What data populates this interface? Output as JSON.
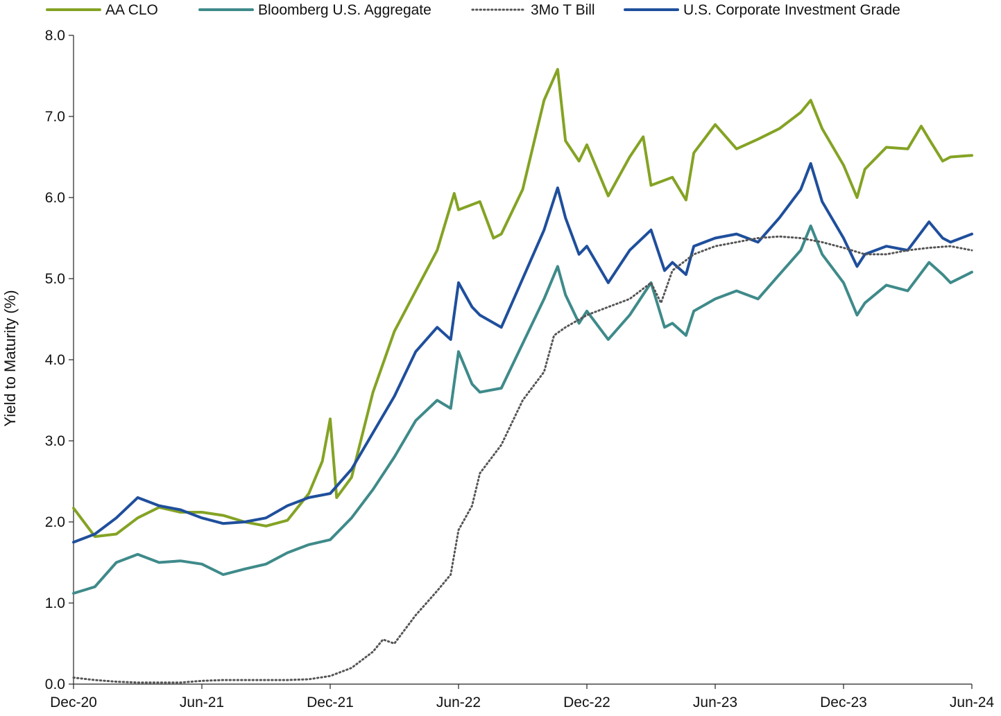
{
  "chart_data": {
    "type": "line",
    "xlabel": "",
    "ylabel": "Yield to Maturity (%)",
    "ylim": [
      0,
      8
    ],
    "yticks": [
      "0.0",
      "1.0",
      "2.0",
      "3.0",
      "4.0",
      "5.0",
      "6.0",
      "7.0",
      "8.0"
    ],
    "xlim": [
      "2020-12",
      "2024-06"
    ],
    "xticks": [
      {
        "label": "Dec-20",
        "date": "2020-12"
      },
      {
        "label": "Jun-21",
        "date": "2021-06"
      },
      {
        "label": "Dec-21",
        "date": "2021-12"
      },
      {
        "label": "Jun-22",
        "date": "2022-06"
      },
      {
        "label": "Dec-22",
        "date": "2022-12"
      },
      {
        "label": "Jun-23",
        "date": "2023-06"
      },
      {
        "label": "Dec-23",
        "date": "2023-12"
      },
      {
        "label": "Jun-24",
        "date": "2024-06"
      }
    ],
    "legend_position": "top",
    "grid": false,
    "series": [
      {
        "name": "AA CLO",
        "color": "#84a324",
        "style": "solid",
        "points": [
          [
            "2020-12",
            2.17
          ],
          [
            "2021-01",
            1.82
          ],
          [
            "2021-02",
            1.85
          ],
          [
            "2021-03",
            2.05
          ],
          [
            "2021-04",
            2.18
          ],
          [
            "2021-05",
            2.12
          ],
          [
            "2021-06",
            2.12
          ],
          [
            "2021-07",
            2.08
          ],
          [
            "2021-08",
            2.0
          ],
          [
            "2021-09",
            1.95
          ],
          [
            "2021-10",
            2.02
          ],
          [
            "2021-11",
            2.35
          ],
          [
            "2021-11-20",
            2.75
          ],
          [
            "2021-12-01",
            3.27
          ],
          [
            "2021-12-10",
            2.3
          ],
          [
            "2022-01",
            2.55
          ],
          [
            "2022-02",
            3.6
          ],
          [
            "2022-03",
            4.35
          ],
          [
            "2022-04",
            4.85
          ],
          [
            "2022-05",
            5.35
          ],
          [
            "2022-05-25",
            6.05
          ],
          [
            "2022-06",
            5.85
          ],
          [
            "2022-07",
            5.95
          ],
          [
            "2022-07-20",
            5.5
          ],
          [
            "2022-08",
            5.55
          ],
          [
            "2022-09",
            6.1
          ],
          [
            "2022-10",
            7.2
          ],
          [
            "2022-10-20",
            7.58
          ],
          [
            "2022-11",
            6.7
          ],
          [
            "2022-11-20",
            6.45
          ],
          [
            "2022-12",
            6.65
          ],
          [
            "2023-01",
            6.02
          ],
          [
            "2023-02",
            6.5
          ],
          [
            "2023-02-20",
            6.75
          ],
          [
            "2023-03",
            6.15
          ],
          [
            "2023-04",
            6.25
          ],
          [
            "2023-04-20",
            5.97
          ],
          [
            "2023-05",
            6.55
          ],
          [
            "2023-06",
            6.9
          ],
          [
            "2023-07",
            6.6
          ],
          [
            "2023-08",
            6.72
          ],
          [
            "2023-09",
            6.85
          ],
          [
            "2023-10",
            7.05
          ],
          [
            "2023-10-15",
            7.2
          ],
          [
            "2023-11",
            6.85
          ],
          [
            "2023-12",
            6.4
          ],
          [
            "2023-12-20",
            6.0
          ],
          [
            "2024-01",
            6.35
          ],
          [
            "2024-02",
            6.62
          ],
          [
            "2024-03",
            6.6
          ],
          [
            "2024-03-20",
            6.88
          ],
          [
            "2024-04",
            6.72
          ],
          [
            "2024-04-20",
            6.45
          ],
          [
            "2024-05",
            6.5
          ],
          [
            "2024-06",
            6.52
          ]
        ]
      },
      {
        "name": "Bloomberg U.S. Aggregate",
        "color": "#3f8a8a",
        "style": "solid",
        "points": [
          [
            "2020-12",
            1.12
          ],
          [
            "2021-01",
            1.2
          ],
          [
            "2021-02",
            1.5
          ],
          [
            "2021-03",
            1.6
          ],
          [
            "2021-04",
            1.5
          ],
          [
            "2021-05",
            1.52
          ],
          [
            "2021-06",
            1.48
          ],
          [
            "2021-07",
            1.35
          ],
          [
            "2021-08",
            1.42
          ],
          [
            "2021-09",
            1.48
          ],
          [
            "2021-10",
            1.62
          ],
          [
            "2021-11",
            1.72
          ],
          [
            "2021-12",
            1.78
          ],
          [
            "2022-01",
            2.05
          ],
          [
            "2022-02",
            2.4
          ],
          [
            "2022-03",
            2.8
          ],
          [
            "2022-04",
            3.25
          ],
          [
            "2022-05",
            3.5
          ],
          [
            "2022-05-20",
            3.4
          ],
          [
            "2022-06",
            4.1
          ],
          [
            "2022-06-20",
            3.7
          ],
          [
            "2022-07",
            3.6
          ],
          [
            "2022-08",
            3.65
          ],
          [
            "2022-09",
            4.2
          ],
          [
            "2022-10",
            4.75
          ],
          [
            "2022-10-20",
            5.15
          ],
          [
            "2022-11",
            4.8
          ],
          [
            "2022-11-20",
            4.45
          ],
          [
            "2022-12",
            4.6
          ],
          [
            "2023-01",
            4.25
          ],
          [
            "2023-02",
            4.55
          ],
          [
            "2023-03",
            4.95
          ],
          [
            "2023-03-20",
            4.4
          ],
          [
            "2023-04",
            4.45
          ],
          [
            "2023-04-20",
            4.3
          ],
          [
            "2023-05",
            4.6
          ],
          [
            "2023-06",
            4.75
          ],
          [
            "2023-07",
            4.85
          ],
          [
            "2023-08",
            4.75
          ],
          [
            "2023-09",
            5.05
          ],
          [
            "2023-10",
            5.35
          ],
          [
            "2023-10-15",
            5.65
          ],
          [
            "2023-11",
            5.3
          ],
          [
            "2023-12",
            4.95
          ],
          [
            "2023-12-20",
            4.55
          ],
          [
            "2024-01",
            4.7
          ],
          [
            "2024-02",
            4.92
          ],
          [
            "2024-03",
            4.85
          ],
          [
            "2024-04",
            5.2
          ],
          [
            "2024-04-20",
            5.05
          ],
          [
            "2024-05",
            4.95
          ],
          [
            "2024-06",
            5.08
          ]
        ]
      },
      {
        "name": "3Mo T Bill",
        "color": "#555555",
        "style": "dotted",
        "points": [
          [
            "2020-12",
            0.08
          ],
          [
            "2021-01",
            0.05
          ],
          [
            "2021-02",
            0.03
          ],
          [
            "2021-03",
            0.02
          ],
          [
            "2021-04",
            0.02
          ],
          [
            "2021-05",
            0.02
          ],
          [
            "2021-06",
            0.04
          ],
          [
            "2021-07",
            0.05
          ],
          [
            "2021-08",
            0.05
          ],
          [
            "2021-09",
            0.05
          ],
          [
            "2021-10",
            0.05
          ],
          [
            "2021-11",
            0.06
          ],
          [
            "2021-12",
            0.1
          ],
          [
            "2022-01",
            0.2
          ],
          [
            "2022-02",
            0.4
          ],
          [
            "2022-02-15",
            0.55
          ],
          [
            "2022-03",
            0.5
          ],
          [
            "2022-04",
            0.85
          ],
          [
            "2022-05",
            1.15
          ],
          [
            "2022-05-20",
            1.35
          ],
          [
            "2022-06",
            1.9
          ],
          [
            "2022-06-20",
            2.2
          ],
          [
            "2022-07",
            2.6
          ],
          [
            "2022-08",
            2.95
          ],
          [
            "2022-09",
            3.5
          ],
          [
            "2022-10",
            3.85
          ],
          [
            "2022-10-15",
            4.3
          ],
          [
            "2022-11",
            4.4
          ],
          [
            "2022-12",
            4.55
          ],
          [
            "2023-01",
            4.65
          ],
          [
            "2023-02",
            4.75
          ],
          [
            "2023-03",
            4.95
          ],
          [
            "2023-03-15",
            4.7
          ],
          [
            "2023-04",
            5.1
          ],
          [
            "2023-05",
            5.3
          ],
          [
            "2023-06",
            5.4
          ],
          [
            "2023-07",
            5.45
          ],
          [
            "2023-08",
            5.5
          ],
          [
            "2023-09",
            5.52
          ],
          [
            "2023-10",
            5.5
          ],
          [
            "2023-11",
            5.45
          ],
          [
            "2023-12",
            5.38
          ],
          [
            "2024-01",
            5.3
          ],
          [
            "2024-02",
            5.3
          ],
          [
            "2024-03",
            5.35
          ],
          [
            "2024-04",
            5.38
          ],
          [
            "2024-05",
            5.4
          ],
          [
            "2024-06",
            5.35
          ]
        ]
      },
      {
        "name": "U.S. Corporate Investment Grade",
        "color": "#1f4f9c",
        "style": "solid",
        "points": [
          [
            "2020-12",
            1.75
          ],
          [
            "2021-01",
            1.85
          ],
          [
            "2021-02",
            2.05
          ],
          [
            "2021-03",
            2.3
          ],
          [
            "2021-04",
            2.2
          ],
          [
            "2021-05",
            2.15
          ],
          [
            "2021-06",
            2.05
          ],
          [
            "2021-07",
            1.98
          ],
          [
            "2021-08",
            2.0
          ],
          [
            "2021-09",
            2.05
          ],
          [
            "2021-10",
            2.2
          ],
          [
            "2021-11",
            2.3
          ],
          [
            "2021-12",
            2.35
          ],
          [
            "2022-01",
            2.65
          ],
          [
            "2022-02",
            3.1
          ],
          [
            "2022-03",
            3.55
          ],
          [
            "2022-04",
            4.1
          ],
          [
            "2022-05",
            4.4
          ],
          [
            "2022-05-20",
            4.25
          ],
          [
            "2022-06",
            4.95
          ],
          [
            "2022-06-20",
            4.65
          ],
          [
            "2022-07",
            4.55
          ],
          [
            "2022-08",
            4.4
          ],
          [
            "2022-09",
            5.0
          ],
          [
            "2022-10",
            5.6
          ],
          [
            "2022-10-20",
            6.12
          ],
          [
            "2022-11",
            5.75
          ],
          [
            "2022-11-20",
            5.3
          ],
          [
            "2022-12",
            5.4
          ],
          [
            "2023-01",
            4.95
          ],
          [
            "2023-02",
            5.35
          ],
          [
            "2023-03",
            5.6
          ],
          [
            "2023-03-20",
            5.1
          ],
          [
            "2023-04",
            5.2
          ],
          [
            "2023-04-20",
            5.05
          ],
          [
            "2023-05",
            5.4
          ],
          [
            "2023-06",
            5.5
          ],
          [
            "2023-07",
            5.55
          ],
          [
            "2023-08",
            5.45
          ],
          [
            "2023-09",
            5.75
          ],
          [
            "2023-10",
            6.1
          ],
          [
            "2023-10-15",
            6.42
          ],
          [
            "2023-11",
            5.95
          ],
          [
            "2023-12",
            5.5
          ],
          [
            "2023-12-20",
            5.15
          ],
          [
            "2024-01",
            5.3
          ],
          [
            "2024-02",
            5.4
          ],
          [
            "2024-03",
            5.35
          ],
          [
            "2024-04",
            5.7
          ],
          [
            "2024-04-20",
            5.5
          ],
          [
            "2024-05",
            5.45
          ],
          [
            "2024-06",
            5.55
          ]
        ]
      }
    ]
  }
}
